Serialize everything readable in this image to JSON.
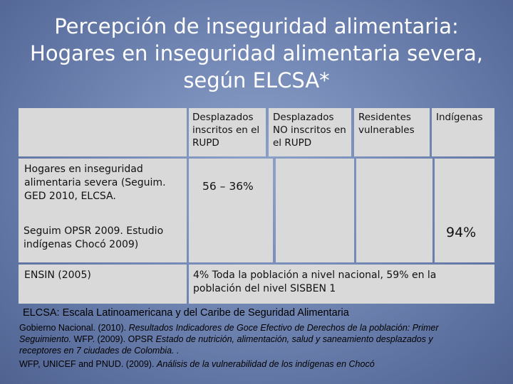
{
  "title": {
    "line1": "Percepción de inseguridad alimentaria:",
    "line2": "Hogares en inseguridad alimentaria severa,",
    "line3": "según ELCSA*"
  },
  "table": {
    "headers": {
      "col1": "Desplazados inscritos en el RUPD",
      "col2": "Desplazados NO inscritos en el RUPD",
      "col3": "Residentes vulnerables",
      "col4": "Indígenas"
    },
    "rows": {
      "row1_label": "Hogares en inseguridad alimentaria severa (Seguim. GED 2010, ELCSA.",
      "row1_value": "56 – 36%",
      "row2_label": "Seguim OPSR 2009. Estudio indígenas Chocó 2009)",
      "row2_value": "94%",
      "row3_label": "ENSIN (2005)",
      "row3_value": "4% Toda la población a nivel nacional, 59% en la población del nivel SISBEN 1"
    },
    "cell_color": "#d9d9d9"
  },
  "footnote": "ELCSA: Escala Latinoamericana y del Caribe de Seguridad Alimentaria",
  "references": {
    "ref1_plain": "Gobierno Nacional. (2010). ",
    "ref1_italic": "Resultados Indicadores de Goce Efectivo de Derechos de la población: Primer",
    "ref1_line2_italic": "Seguimiento. ",
    "ref1_line2_plain": "WFP. (2009). OPSR ",
    "ref1_line2_italic2": "Estado de nutrición, alimentación, salud y saneamiento desplazados y",
    "ref1_line3_italic": "receptores en 7 ciudades de Colombia. .",
    "ref2_plain": "WFP, UNICEF and PNUD. (2009). ",
    "ref2_italic": "Análisis de la vulnerabilidad de los indígenas en Chocó"
  }
}
